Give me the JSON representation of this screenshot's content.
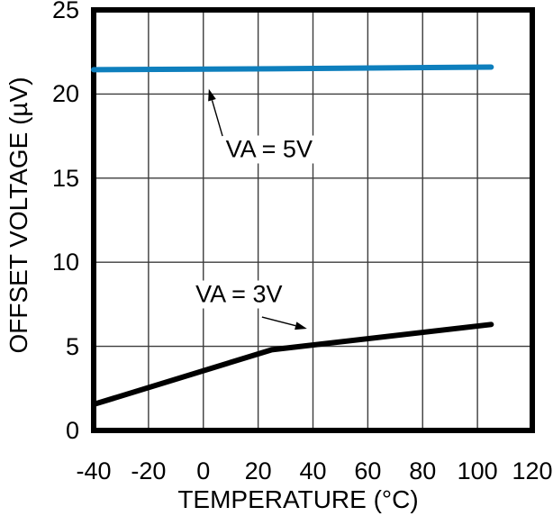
{
  "chart_data": {
    "type": "line",
    "title": "",
    "xlabel": "TEMPERATURE (°C)",
    "ylabel": "OFFSET VOLTAGE (µV)",
    "xlim": [
      -40,
      120
    ],
    "ylim": [
      0,
      25
    ],
    "x_ticks": [
      -40,
      -20,
      0,
      20,
      40,
      60,
      80,
      100,
      120
    ],
    "y_ticks": [
      0,
      5,
      10,
      15,
      20,
      25
    ],
    "grid": true,
    "legend_position": "none",
    "series": [
      {
        "name": "VA = 5V",
        "color": "#0e7fbd",
        "width": 6,
        "points": [
          [
            -40,
            21.45
          ],
          [
            25,
            21.5
          ],
          [
            105,
            21.6
          ]
        ]
      },
      {
        "name": "VA = 3V",
        "color": "#000000",
        "width": 6,
        "points": [
          [
            -40,
            1.55
          ],
          [
            25,
            4.8
          ],
          [
            105,
            6.3
          ]
        ]
      }
    ],
    "annotations": [
      {
        "text": "VA = 5V",
        "x": 24,
        "y": 16.7,
        "arrow_from": [
          7.0,
          17.5
        ],
        "arrow_to": [
          2.0,
          20.3
        ]
      },
      {
        "text": "VA = 3V",
        "x": 13,
        "y": 8.1,
        "arrow_from": [
          21.4,
          6.74
        ],
        "arrow_to": [
          37.8,
          6.05
        ]
      }
    ]
  },
  "colors": {
    "plot_border": "#000000",
    "gridline": "#3c3c3c",
    "text": "#000000"
  }
}
